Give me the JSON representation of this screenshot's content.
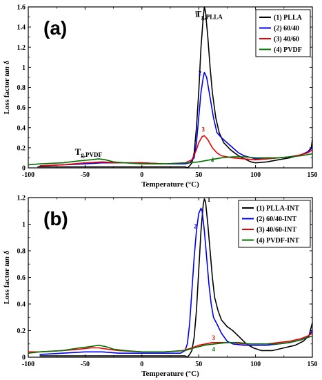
{
  "chart_data": [
    {
      "type": "line",
      "panel_label": "(a)",
      "xlabel": "Temperature (°C)",
      "ylabel_prefix": "Loss factor ",
      "ylabel_italic": "tan δ",
      "xlim": [
        -100,
        150
      ],
      "ylim": [
        0,
        1.6
      ],
      "xticks": [
        "-100",
        "-50",
        "0",
        "50",
        "100",
        "150"
      ],
      "yticks": [
        "0",
        "0.2",
        "0.4",
        "0.6",
        "0.8",
        "1",
        "1.2",
        "1.4",
        "1.6"
      ],
      "legend_position": "top-right",
      "annotations": [
        {
          "main": "T",
          "sub": "g,PLLA",
          "x": 59,
          "y": 1.5
        },
        {
          "main": "T",
          "sub": "g,PVDF",
          "x": -47,
          "y": 0.13
        }
      ],
      "series": [
        {
          "name": "(1) PLLA",
          "color": "#000000",
          "label": "1",
          "label_at": [
            48,
            1.5
          ],
          "points": [
            [
              -92,
              0.01
            ],
            [
              -80,
              0.01
            ],
            [
              -60,
              0.01
            ],
            [
              -40,
              0.01
            ],
            [
              -20,
              0.01
            ],
            [
              0,
              0.01
            ],
            [
              20,
              0.01
            ],
            [
              34,
              0.01
            ],
            [
              38,
              0.01
            ],
            [
              40,
              0.0
            ],
            [
              42,
              0.02
            ],
            [
              44,
              0.05
            ],
            [
              46,
              0.15
            ],
            [
              48,
              0.4
            ],
            [
              50,
              0.75
            ],
            [
              52,
              1.2
            ],
            [
              54,
              1.5
            ],
            [
              55,
              1.6
            ],
            [
              56,
              1.55
            ],
            [
              58,
              1.3
            ],
            [
              60,
              1.0
            ],
            [
              62,
              0.75
            ],
            [
              65,
              0.5
            ],
            [
              68,
              0.35
            ],
            [
              72,
              0.25
            ],
            [
              78,
              0.18
            ],
            [
              85,
              0.12
            ],
            [
              92,
              0.08
            ],
            [
              96,
              0.06
            ],
            [
              100,
              0.05
            ],
            [
              110,
              0.06
            ],
            [
              120,
              0.08
            ],
            [
              130,
              0.1
            ],
            [
              140,
              0.13
            ],
            [
              146,
              0.16
            ],
            [
              149,
              0.2
            ],
            [
              150,
              0.28
            ]
          ]
        },
        {
          "name": "(2) 60/40",
          "color": "#0000ee",
          "label": "2",
          "label_at": [
            51,
            0.92
          ],
          "points": [
            [
              -90,
              0.02
            ],
            [
              -70,
              0.03
            ],
            [
              -50,
              0.04
            ],
            [
              -35,
              0.05
            ],
            [
              -20,
              0.05
            ],
            [
              0,
              0.05
            ],
            [
              20,
              0.04
            ],
            [
              38,
              0.04
            ],
            [
              42,
              0.05
            ],
            [
              46,
              0.1
            ],
            [
              48,
              0.25
            ],
            [
              50,
              0.5
            ],
            [
              52,
              0.75
            ],
            [
              54,
              0.9
            ],
            [
              55,
              0.95
            ],
            [
              57,
              0.9
            ],
            [
              60,
              0.7
            ],
            [
              63,
              0.5
            ],
            [
              66,
              0.35
            ],
            [
              70,
              0.3
            ],
            [
              75,
              0.25
            ],
            [
              80,
              0.2
            ],
            [
              85,
              0.15
            ],
            [
              90,
              0.12
            ],
            [
              100,
              0.09
            ],
            [
              110,
              0.09
            ],
            [
              120,
              0.1
            ],
            [
              130,
              0.11
            ],
            [
              140,
              0.13
            ],
            [
              146,
              0.16
            ],
            [
              150,
              0.2
            ]
          ]
        },
        {
          "name": "(3) 40/60",
          "color": "#ee0000",
          "label": "3",
          "label_at": [
            54,
            0.36
          ],
          "points": [
            [
              -90,
              0.02
            ],
            [
              -70,
              0.03
            ],
            [
              -50,
              0.05
            ],
            [
              -35,
              0.06
            ],
            [
              -20,
              0.05
            ],
            [
              0,
              0.05
            ],
            [
              20,
              0.04
            ],
            [
              38,
              0.05
            ],
            [
              44,
              0.08
            ],
            [
              48,
              0.18
            ],
            [
              50,
              0.25
            ],
            [
              53,
              0.31
            ],
            [
              55,
              0.32
            ],
            [
              58,
              0.28
            ],
            [
              62,
              0.2
            ],
            [
              66,
              0.15
            ],
            [
              70,
              0.12
            ],
            [
              80,
              0.1
            ],
            [
              90,
              0.09
            ],
            [
              100,
              0.08
            ],
            [
              110,
              0.09
            ],
            [
              120,
              0.1
            ],
            [
              130,
              0.11
            ],
            [
              140,
              0.13
            ],
            [
              146,
              0.15
            ],
            [
              150,
              0.18
            ]
          ]
        },
        {
          "name": "(4) PVDF",
          "color": "#007000",
          "label": "4",
          "label_at": [
            62,
            0.06
          ],
          "points": [
            [
              -100,
              0.03
            ],
            [
              -90,
              0.04
            ],
            [
              -70,
              0.05
            ],
            [
              -55,
              0.07
            ],
            [
              -45,
              0.08
            ],
            [
              -38,
              0.09
            ],
            [
              -32,
              0.08
            ],
            [
              -25,
              0.06
            ],
            [
              -15,
              0.05
            ],
            [
              0,
              0.04
            ],
            [
              20,
              0.04
            ],
            [
              40,
              0.05
            ],
            [
              50,
              0.06
            ],
            [
              60,
              0.08
            ],
            [
              70,
              0.1
            ],
            [
              80,
              0.11
            ],
            [
              90,
              0.11
            ],
            [
              100,
              0.1
            ],
            [
              110,
              0.1
            ],
            [
              120,
              0.1
            ],
            [
              130,
              0.11
            ],
            [
              140,
              0.12
            ],
            [
              150,
              0.14
            ]
          ]
        }
      ]
    },
    {
      "type": "line",
      "panel_label": "(b)",
      "xlabel": "Temperature (°C)",
      "ylabel_prefix": "Loss factor ",
      "ylabel_italic": "tan δ",
      "xlim": [
        -100,
        150
      ],
      "ylim": [
        0,
        1.2
      ],
      "xticks": [
        "-100",
        "-50",
        "0",
        "50",
        "100",
        "150"
      ],
      "yticks": [
        "0",
        "0.2",
        "0.4",
        "0.6",
        "0.8",
        "1",
        "1.2"
      ],
      "legend_position": "top-right",
      "annotations": [],
      "series": [
        {
          "name": "(1) PLLA-INT",
          "color": "#000000",
          "label": "1",
          "label_at": [
            59,
            1.17
          ],
          "points": [
            [
              -90,
              0.01
            ],
            [
              -80,
              0.01
            ],
            [
              -60,
              0.01
            ],
            [
              -40,
              0.01
            ],
            [
              -20,
              0.01
            ],
            [
              0,
              0.01
            ],
            [
              20,
              0.01
            ],
            [
              34,
              0.01
            ],
            [
              38,
              0.01
            ],
            [
              40,
              0.0
            ],
            [
              42,
              0.02
            ],
            [
              44,
              0.05
            ],
            [
              46,
              0.15
            ],
            [
              48,
              0.35
            ],
            [
              50,
              0.65
            ],
            [
              52,
              0.95
            ],
            [
              54,
              1.15
            ],
            [
              55,
              1.19
            ],
            [
              56,
              1.17
            ],
            [
              58,
              1.0
            ],
            [
              60,
              0.8
            ],
            [
              62,
              0.6
            ],
            [
              64,
              0.45
            ],
            [
              67,
              0.35
            ],
            [
              70,
              0.28
            ],
            [
              75,
              0.23
            ],
            [
              80,
              0.2
            ],
            [
              86,
              0.15
            ],
            [
              92,
              0.1
            ],
            [
              98,
              0.07
            ],
            [
              105,
              0.05
            ],
            [
              115,
              0.05
            ],
            [
              125,
              0.07
            ],
            [
              135,
              0.09
            ],
            [
              142,
              0.12
            ],
            [
              147,
              0.16
            ],
            [
              150,
              0.26
            ]
          ]
        },
        {
          "name": "(2) 60/40-INT",
          "color": "#0000ee",
          "label": "2",
          "label_at": [
            47,
            0.97
          ],
          "points": [
            [
              -90,
              0.02
            ],
            [
              -70,
              0.03
            ],
            [
              -50,
              0.04
            ],
            [
              -35,
              0.04
            ],
            [
              -20,
              0.03
            ],
            [
              0,
              0.03
            ],
            [
              20,
              0.03
            ],
            [
              34,
              0.03
            ],
            [
              38,
              0.05
            ],
            [
              40,
              0.1
            ],
            [
              42,
              0.25
            ],
            [
              44,
              0.5
            ],
            [
              46,
              0.75
            ],
            [
              48,
              0.95
            ],
            [
              50,
              1.08
            ],
            [
              52,
              1.12
            ],
            [
              53,
              1.1
            ],
            [
              55,
              0.95
            ],
            [
              57,
              0.75
            ],
            [
              59,
              0.55
            ],
            [
              61,
              0.4
            ],
            [
              63,
              0.3
            ],
            [
              66,
              0.25
            ],
            [
              70,
              0.18
            ],
            [
              75,
              0.12
            ],
            [
              80,
              0.1
            ],
            [
              90,
              0.09
            ],
            [
              100,
              0.09
            ],
            [
              110,
              0.09
            ],
            [
              120,
              0.1
            ],
            [
              130,
              0.11
            ],
            [
              140,
              0.13
            ],
            [
              146,
              0.15
            ],
            [
              150,
              0.2
            ]
          ]
        },
        {
          "name": "(3) 40/60-INT",
          "color": "#ee0000",
          "label": "3",
          "label_at": [
            63,
            0.13
          ],
          "points": [
            [
              -100,
              0.04
            ],
            [
              -90,
              0.04
            ],
            [
              -70,
              0.05
            ],
            [
              -55,
              0.06
            ],
            [
              -45,
              0.07
            ],
            [
              -38,
              0.07
            ],
            [
              -30,
              0.06
            ],
            [
              -20,
              0.05
            ],
            [
              0,
              0.04
            ],
            [
              20,
              0.04
            ],
            [
              36,
              0.05
            ],
            [
              44,
              0.07
            ],
            [
              50,
              0.09
            ],
            [
              56,
              0.1
            ],
            [
              62,
              0.11
            ],
            [
              70,
              0.11
            ],
            [
              80,
              0.11
            ],
            [
              90,
              0.1
            ],
            [
              100,
              0.1
            ],
            [
              110,
              0.1
            ],
            [
              120,
              0.11
            ],
            [
              130,
              0.12
            ],
            [
              140,
              0.14
            ],
            [
              146,
              0.16
            ],
            [
              150,
              0.18
            ]
          ]
        },
        {
          "name": "(4) PVDF-INT",
          "color": "#007000",
          "label": "4",
          "label_at": [
            63,
            0.045
          ],
          "points": [
            [
              -100,
              0.03
            ],
            [
              -90,
              0.04
            ],
            [
              -70,
              0.05
            ],
            [
              -55,
              0.07
            ],
            [
              -45,
              0.08
            ],
            [
              -38,
              0.09
            ],
            [
              -32,
              0.08
            ],
            [
              -25,
              0.06
            ],
            [
              -15,
              0.05
            ],
            [
              0,
              0.04
            ],
            [
              20,
              0.04
            ],
            [
              38,
              0.05
            ],
            [
              46,
              0.07
            ],
            [
              55,
              0.09
            ],
            [
              64,
              0.1
            ],
            [
              75,
              0.11
            ],
            [
              85,
              0.11
            ],
            [
              95,
              0.1
            ],
            [
              110,
              0.1
            ],
            [
              120,
              0.1
            ],
            [
              130,
              0.11
            ],
            [
              140,
              0.13
            ],
            [
              150,
              0.16
            ]
          ]
        }
      ]
    }
  ]
}
